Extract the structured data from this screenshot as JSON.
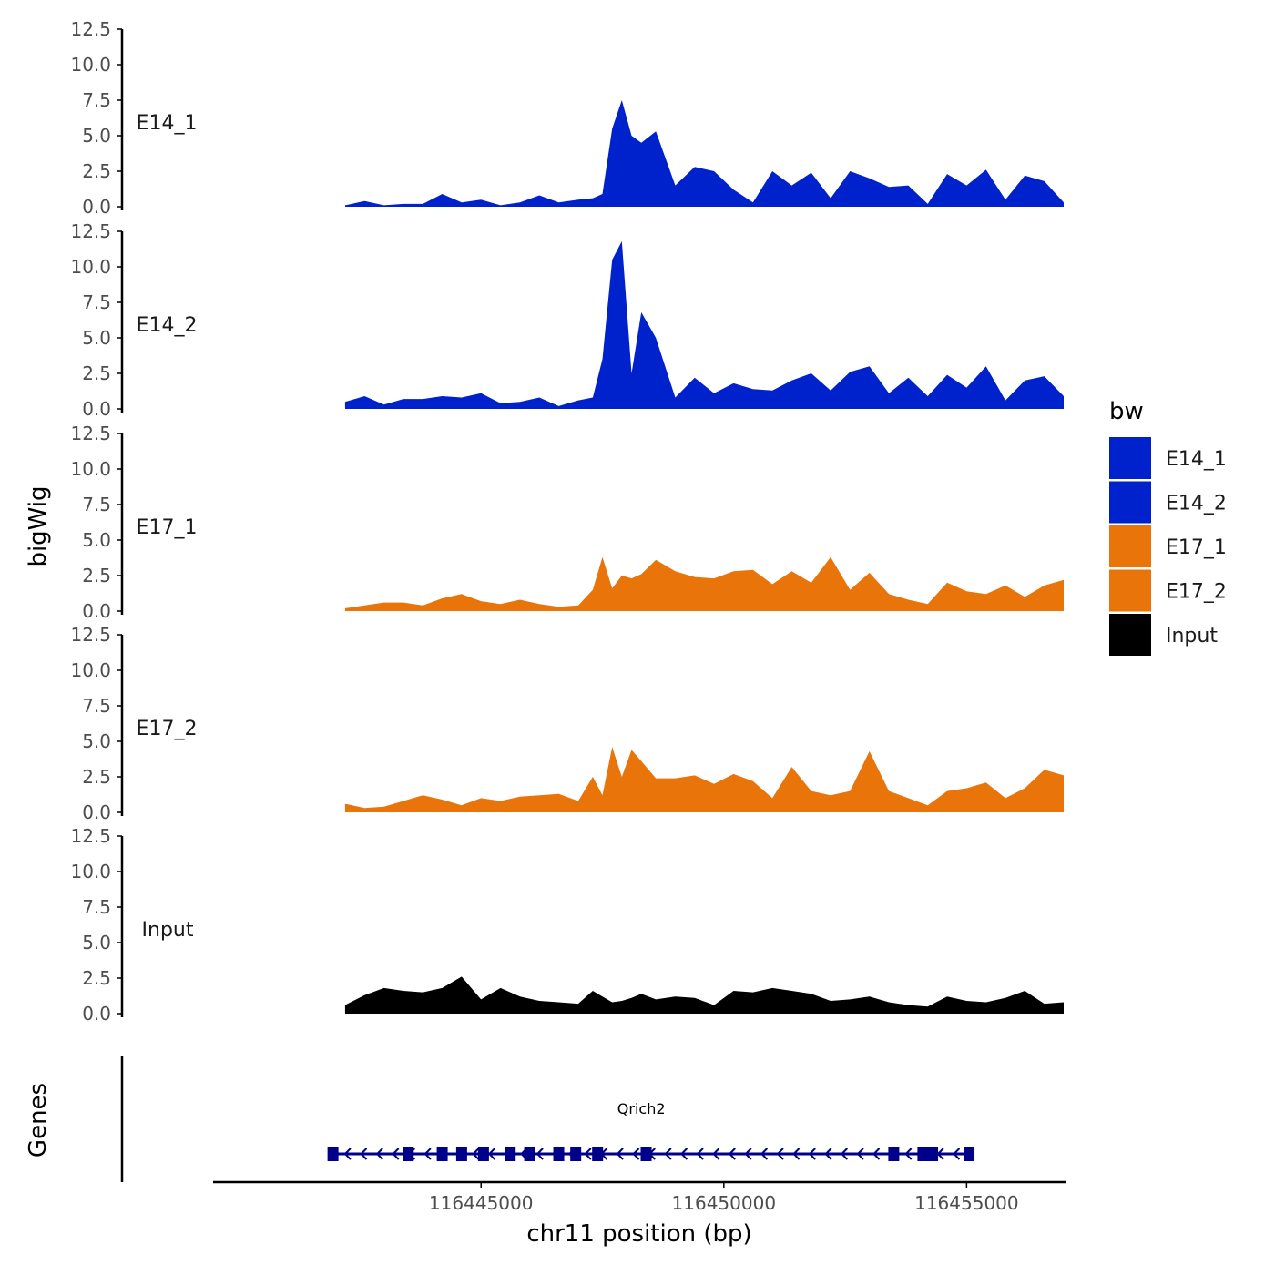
{
  "chart_data": {
    "type": "area",
    "ylabel": "bigWig",
    "xlabel": "chr11 position (bp)",
    "ylim": [
      0,
      12.5
    ],
    "yticks": [
      "0.0",
      "2.5",
      "5.0",
      "7.5",
      "10.0",
      "12.5"
    ],
    "xlim": [
      116439500,
      116457000
    ],
    "xticks": [
      116445000,
      116450000,
      116455000
    ],
    "xtick_labels": [
      "116445000",
      "116450000",
      "116455000"
    ],
    "legend": {
      "title": "bw",
      "position": "right",
      "entries": [
        {
          "label": "E14_1",
          "color": "#0022cc"
        },
        {
          "label": "E14_2",
          "color": "#0022cc"
        },
        {
          "label": "E17_1",
          "color": "#e8740a"
        },
        {
          "label": "E17_2",
          "color": "#e8740a"
        },
        {
          "label": "Input",
          "color": "#000000"
        }
      ]
    },
    "x": [
      116442200,
      116442600,
      116443000,
      116443400,
      116443800,
      116444200,
      116444600,
      116445000,
      116445400,
      116445800,
      116446200,
      116446600,
      116447000,
      116447300,
      116447500,
      116447700,
      116447900,
      116448100,
      116448300,
      116448600,
      116449000,
      116449400,
      116449800,
      116450200,
      116450600,
      116451000,
      116451400,
      116451800,
      116452200,
      116452600,
      116453000,
      116453400,
      116453800,
      116454200,
      116454600,
      116455000,
      116455400,
      116455800,
      116456200,
      116456600,
      116457000
    ],
    "series": [
      {
        "name": "E14_1",
        "color": "#0022cc",
        "values": [
          0.1,
          0.4,
          0.1,
          0.2,
          0.2,
          0.9,
          0.3,
          0.5,
          0.1,
          0.3,
          0.8,
          0.3,
          0.5,
          0.6,
          0.9,
          5.5,
          7.5,
          5.0,
          4.5,
          5.3,
          1.5,
          2.8,
          2.5,
          1.2,
          0.3,
          2.5,
          1.5,
          2.4,
          0.6,
          2.5,
          2.0,
          1.4,
          1.5,
          0.2,
          2.3,
          1.5,
          2.6,
          0.5,
          2.2,
          1.8,
          0.3
        ]
      },
      {
        "name": "E14_2",
        "color": "#0022cc",
        "values": [
          0.5,
          0.9,
          0.3,
          0.7,
          0.7,
          0.9,
          0.8,
          1.1,
          0.4,
          0.5,
          0.8,
          0.2,
          0.6,
          0.8,
          3.5,
          10.5,
          11.8,
          2.5,
          6.8,
          5.0,
          0.8,
          2.2,
          1.1,
          1.8,
          1.4,
          1.3,
          2.0,
          2.5,
          1.3,
          2.6,
          3.0,
          1.1,
          2.2,
          0.9,
          2.4,
          1.5,
          3.0,
          0.6,
          2.0,
          2.3,
          0.9
        ]
      },
      {
        "name": "E17_1",
        "color": "#e8740a",
        "values": [
          0.2,
          0.4,
          0.6,
          0.6,
          0.4,
          0.9,
          1.2,
          0.7,
          0.5,
          0.8,
          0.5,
          0.3,
          0.4,
          1.5,
          3.8,
          1.6,
          2.5,
          2.3,
          2.6,
          3.6,
          2.8,
          2.4,
          2.3,
          2.8,
          2.9,
          1.9,
          2.8,
          2.0,
          3.8,
          1.5,
          2.7,
          1.2,
          0.8,
          0.5,
          2.0,
          1.4,
          1.2,
          1.8,
          1.0,
          1.8,
          2.2
        ]
      },
      {
        "name": "E17_2",
        "color": "#e8740a",
        "values": [
          0.6,
          0.3,
          0.4,
          0.8,
          1.2,
          0.9,
          0.5,
          1.0,
          0.8,
          1.1,
          1.2,
          1.3,
          0.8,
          2.5,
          1.2,
          4.6,
          2.5,
          4.4,
          3.6,
          2.4,
          2.4,
          2.6,
          2.0,
          2.7,
          2.2,
          1.0,
          3.2,
          1.5,
          1.2,
          1.5,
          4.3,
          1.5,
          1.0,
          0.5,
          1.5,
          1.7,
          2.1,
          1.0,
          1.7,
          3.0,
          2.6
        ]
      },
      {
        "name": "Input",
        "color": "#000000",
        "values": [
          0.6,
          1.3,
          1.8,
          1.6,
          1.5,
          1.8,
          2.6,
          1.0,
          1.8,
          1.2,
          0.9,
          0.8,
          0.7,
          1.6,
          1.2,
          0.8,
          0.9,
          1.1,
          1.4,
          1.0,
          1.2,
          1.1,
          0.6,
          1.6,
          1.5,
          1.8,
          1.6,
          1.4,
          0.9,
          1.0,
          1.2,
          0.8,
          0.6,
          0.5,
          1.2,
          0.9,
          0.8,
          1.1,
          1.6,
          0.7,
          0.8
        ]
      }
    ],
    "genes_track": {
      "title": "Genes",
      "gene": "Qrich2",
      "color": "#00008b",
      "start": 116441900,
      "end": 116455100,
      "strand": "-",
      "exons": [
        116441950,
        116443500,
        116444200,
        116444600,
        116445050,
        116445600,
        116446000,
        116446600,
        116446950,
        116447400,
        116448400,
        116453500,
        116454100,
        116454300,
        116455050
      ]
    }
  }
}
